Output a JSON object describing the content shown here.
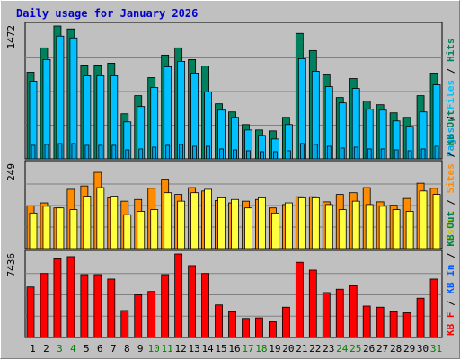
{
  "colors": {
    "frame_bg": "#c0c0c0",
    "plot_bg": "#c0c0c0",
    "title": "#0000cc",
    "hits": "#00805c",
    "files": "#00c0ff",
    "pages": "#00a8e8",
    "visits": "#ffff40",
    "sites": "#ff8c00",
    "kb_in": "#ff0000",
    "weekend": "#008000",
    "day": "#000000"
  },
  "chart_data": {
    "type": "bar",
    "title": "Daily usage for January 2026",
    "categories": [
      "1",
      "2",
      "3",
      "4",
      "5",
      "6",
      "7",
      "8",
      "9",
      "10",
      "11",
      "12",
      "13",
      "14",
      "15",
      "16",
      "17",
      "18",
      "19",
      "20",
      "21",
      "22",
      "23",
      "24",
      "25",
      "26",
      "27",
      "28",
      "29",
      "30",
      "31"
    ],
    "weekend_days": [
      "3",
      "4",
      "10",
      "11",
      "17",
      "18",
      "24",
      "25",
      "31"
    ],
    "panels": [
      {
        "id": "top",
        "ymax": 1472,
        "ymax_label": "1472",
        "side_label": [
          {
            "text": "Pages",
            "color": "#00a8e8"
          },
          {
            "text": " / ",
            "color": "#000000"
          },
          {
            "text": "Files",
            "color": "#00c0ff"
          },
          {
            "text": " / ",
            "color": "#000000"
          },
          {
            "text": "Hits",
            "color": "#00805c"
          }
        ],
        "series": [
          {
            "name": "Hits",
            "color": "#00805c",
            "values": [
              960,
              1230,
              1472,
              1440,
              1040,
              1040,
              1060,
              500,
              700,
              900,
              1150,
              1230,
              1100,
              1030,
              610,
              520,
              380,
              320,
              310,
              460,
              1390,
              1200,
              930,
              680,
              890,
              640,
              600,
              510,
              460,
              700,
              950
            ]
          },
          {
            "name": "Files",
            "color": "#00c0ff",
            "values": [
              860,
              1100,
              1360,
              1340,
              920,
              920,
              920,
              410,
              580,
              790,
              1020,
              1080,
              950,
              740,
              540,
              460,
              320,
              260,
              220,
              380,
              1110,
              970,
              800,
              620,
              780,
              550,
              540,
              420,
              360,
              520,
              820
            ]
          },
          {
            "name": "Pages",
            "color": "#00a8e8",
            "values": [
              150,
              160,
              170,
              170,
              150,
              150,
              150,
              100,
              110,
              130,
              150,
              160,
              140,
              140,
              110,
              100,
              90,
              80,
              80,
              90,
              170,
              160,
              140,
              120,
              130,
              110,
              110,
              100,
              90,
              110,
              140
            ]
          }
        ]
      },
      {
        "id": "middle",
        "ymax": 249,
        "ymax_label": "249",
        "side_label": [
          {
            "text": "Visits",
            "color": "#c8c800"
          },
          {
            "text": " / ",
            "color": "#000000"
          },
          {
            "text": "Sites",
            "color": "#ff8c00"
          },
          {
            "text": " / ",
            "color": "#000000"
          },
          {
            "text": "KB Out",
            "color": "#00805c"
          }
        ],
        "series": [
          {
            "name": "Sites",
            "color": "#ff8c00",
            "values": [
              126,
              135,
              120,
              175,
              185,
              225,
              150,
              140,
              145,
              178,
              205,
              160,
              180,
              170,
              142,
              135,
              140,
              145,
              120,
              130,
              153,
              153,
              138,
              160,
              165,
              180,
              138,
              128,
              148,
              193,
              178
            ]
          },
          {
            "name": "Visits",
            "color": "#ffff40",
            "values": [
              105,
              125,
              120,
              115,
              155,
              180,
              155,
              100,
              110,
              115,
              165,
              140,
              165,
              175,
              150,
              145,
              120,
              150,
              105,
              135,
              150,
              150,
              130,
              115,
              140,
              130,
              125,
              115,
              110,
              170,
              160
            ]
          }
        ]
      },
      {
        "id": "bottom",
        "ymax": 7436,
        "ymax_label": "7436",
        "side_label": [
          {
            "text": "KB F",
            "color": "#ff0000"
          },
          {
            "text": " / ",
            "color": "#000000"
          },
          {
            "text": "KB In",
            "color": "#0060ff"
          },
          {
            "text": " / ",
            "color": "#000000"
          },
          {
            "text": "KB Out",
            "color": "#00805c"
          }
        ],
        "series": [
          {
            "name": "KB F",
            "color": "#ff0000",
            "values": [
              4500,
              5700,
              7000,
              7200,
              5600,
              5600,
              5200,
              2400,
              3800,
              4100,
              5600,
              7436,
              6400,
              5700,
              2900,
              2300,
              1700,
              1750,
              1400,
              2700,
              6700,
              6000,
              4000,
              4300,
              4600,
              2800,
              2700,
              2300,
              2200,
              3500,
              5200
            ]
          }
        ]
      }
    ]
  }
}
